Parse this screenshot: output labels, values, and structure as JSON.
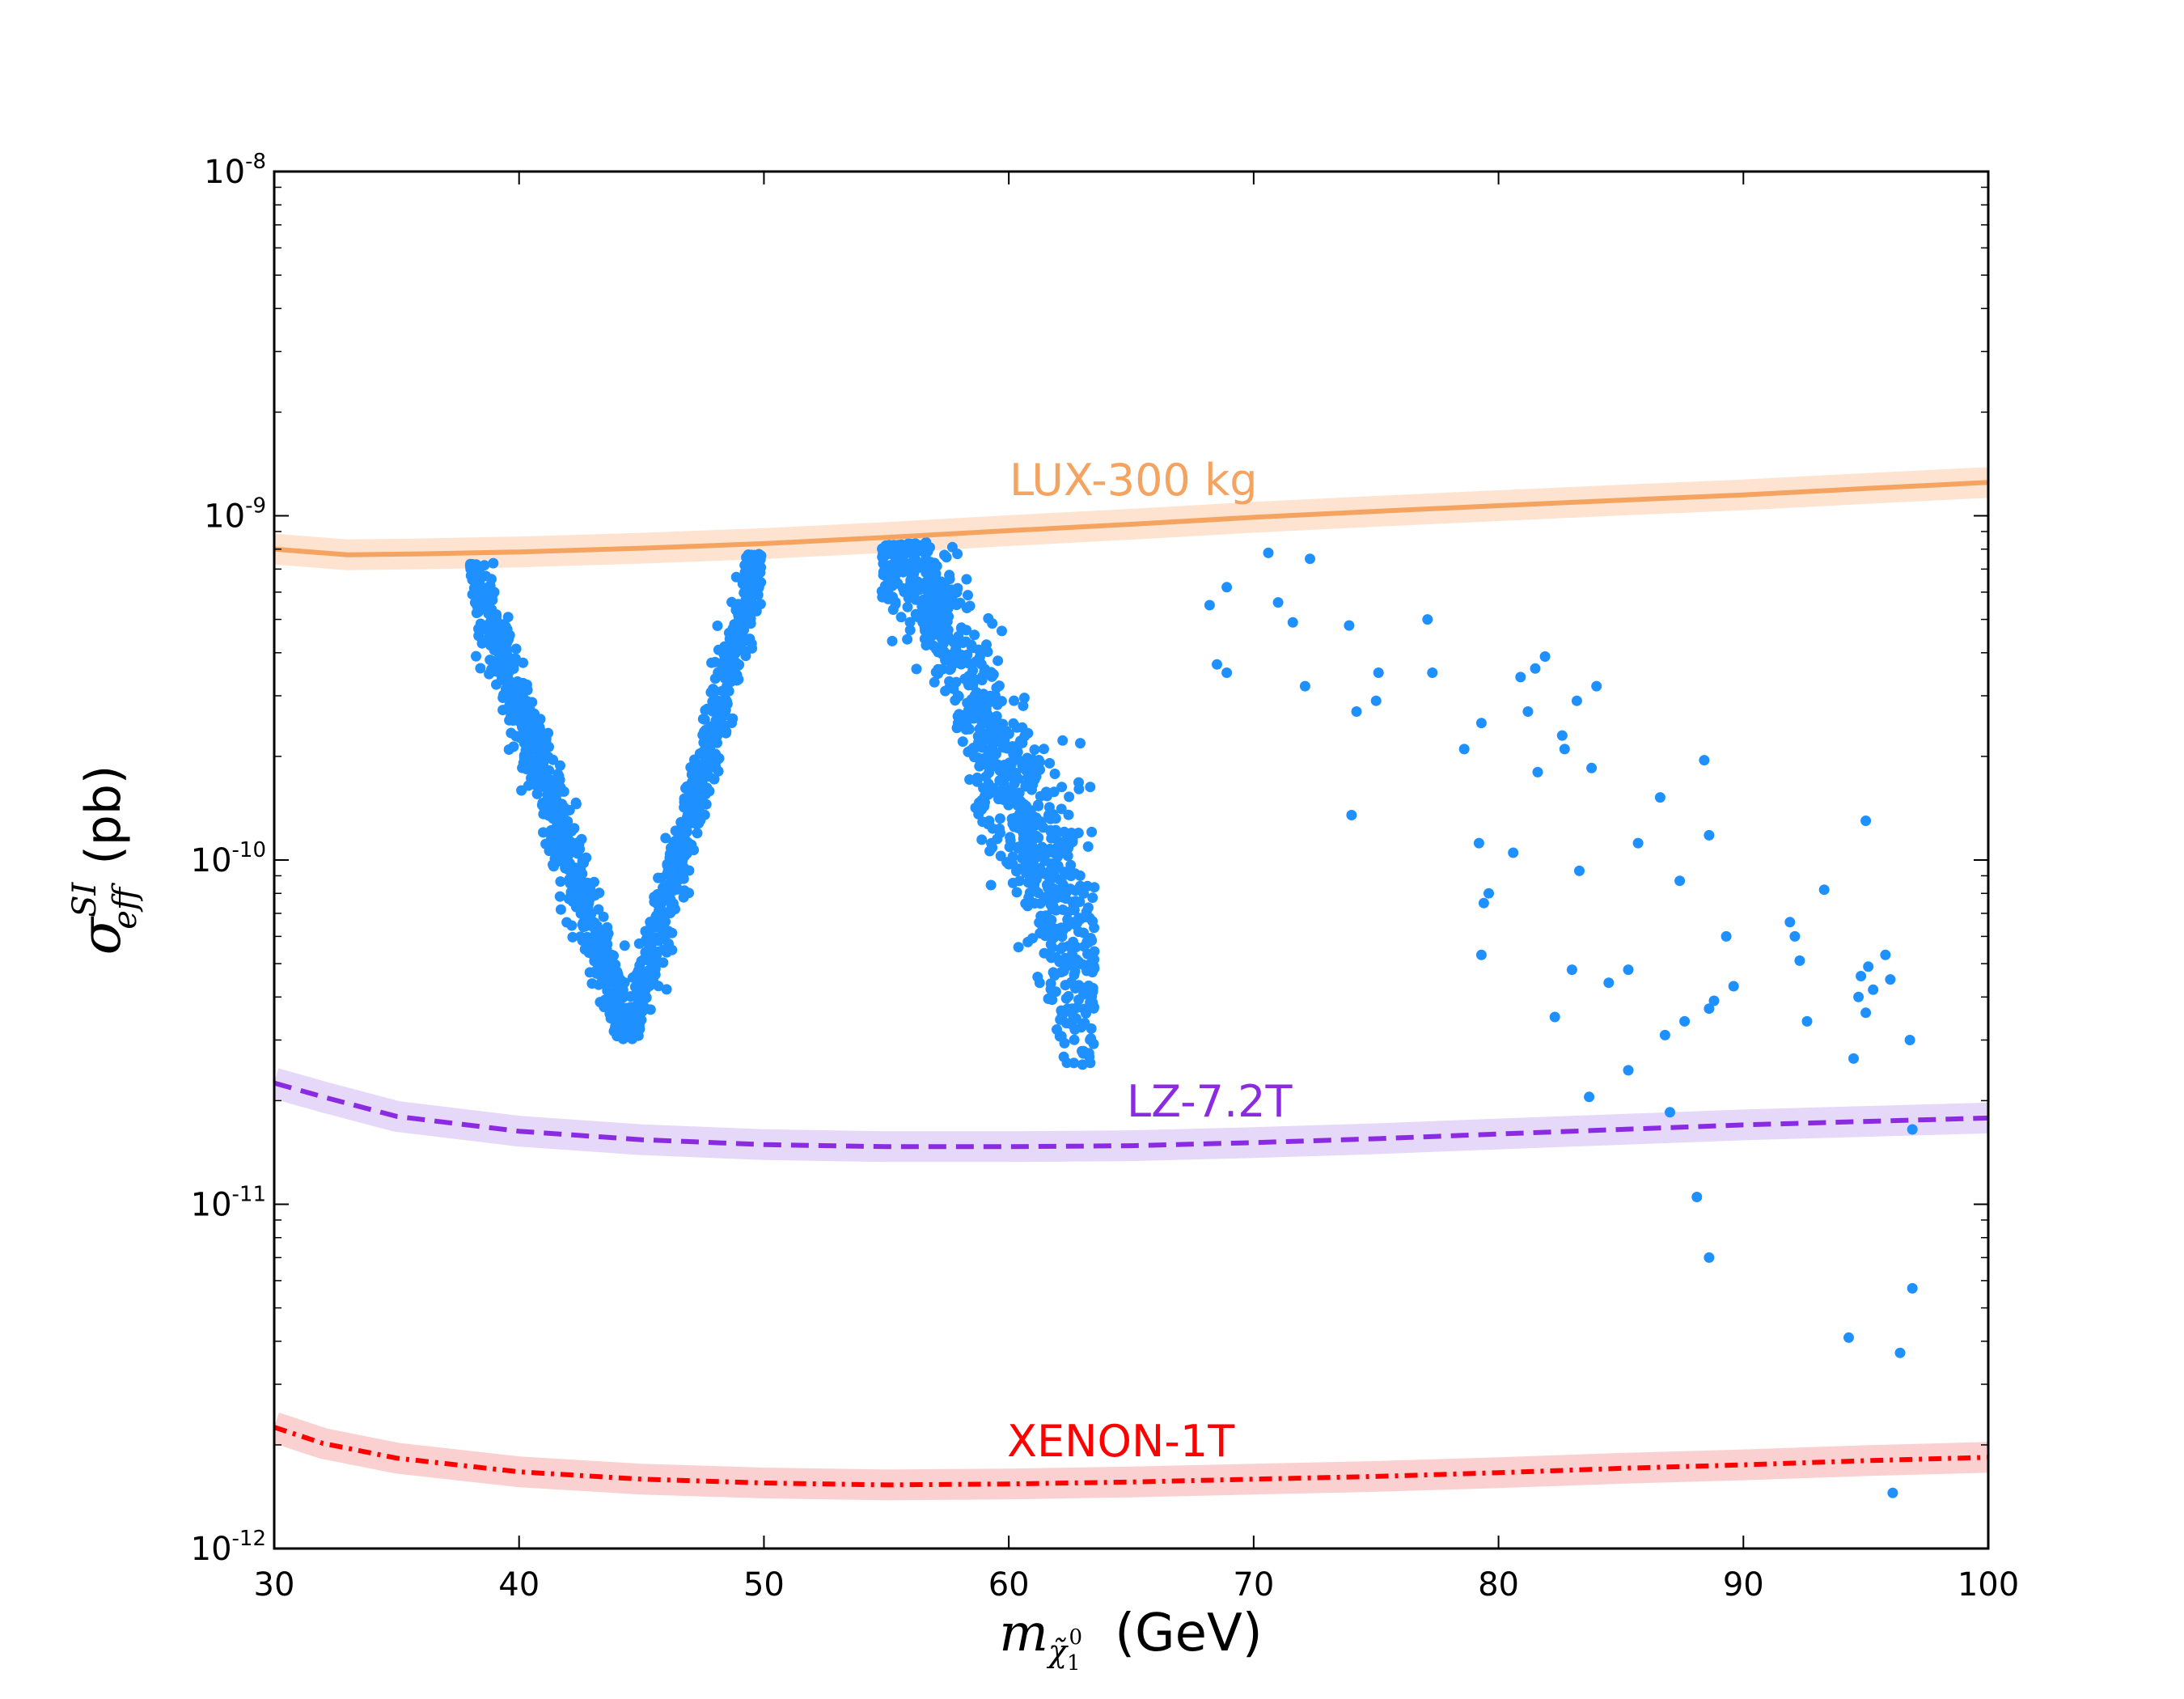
{
  "chart_data": {
    "type": "scatter",
    "xlabel": {
      "symbol": "m",
      "subscript": "χ̃",
      "sub_index": "1",
      "sub_super": "0",
      "unit": "(GeV)"
    },
    "ylabel": {
      "symbol": "σ",
      "superscript": "SI",
      "subscript": "eff",
      "unit": "(pb)"
    },
    "xlim": [
      30,
      100
    ],
    "ylim": [
      1e-12,
      1e-08
    ],
    "yscale": "log",
    "x_ticks": [
      {
        "value": 30,
        "label": "30"
      },
      {
        "value": 40,
        "label": "40"
      },
      {
        "value": 50,
        "label": "50"
      },
      {
        "value": 60,
        "label": "60"
      },
      {
        "value": 70,
        "label": "70"
      },
      {
        "value": 80,
        "label": "80"
      },
      {
        "value": 90,
        "label": "90"
      },
      {
        "value": 100,
        "label": "100"
      }
    ],
    "y_ticks": [
      {
        "exp": -12,
        "base": "10",
        "sup": "-12"
      },
      {
        "exp": -11,
        "base": "10",
        "sup": "-11"
      },
      {
        "exp": -10,
        "base": "10",
        "sup": "-10"
      },
      {
        "exp": -9,
        "base": "10",
        "sup": "-9"
      },
      {
        "exp": -8,
        "base": "10",
        "sup": "-8"
      }
    ],
    "colors": {
      "points": "#1e90ff",
      "lux": "#f4a460",
      "lux_band": "#fde3d0",
      "lz": "#8a2be2",
      "lz_band": "#e6d8f8",
      "xenon": "#ff0000",
      "xenon_band": "#fbd0d0"
    },
    "curves": [
      {
        "name": "LUX-300 kg",
        "label": "LUX-300 kg",
        "style": "solid",
        "color_key": "lux",
        "band_key": "lux_band",
        "label_at": [
          40.0,
          1.05e-09
        ],
        "points": [
          [
            30,
            8e-10
          ],
          [
            33,
            7.7e-10
          ],
          [
            36,
            7.75e-10
          ],
          [
            40,
            7.85e-10
          ],
          [
            45,
            8.05e-10
          ],
          [
            50,
            8.3e-10
          ],
          [
            55,
            8.65e-10
          ],
          [
            60,
            9.05e-10
          ],
          [
            65,
            9.45e-10
          ],
          [
            70,
            9.9e-10
          ],
          [
            75,
            1.03e-09
          ],
          [
            80,
            1.07e-09
          ],
          [
            85,
            1.11e-09
          ],
          [
            90,
            1.15e-09
          ],
          [
            95,
            1.2e-09
          ],
          [
            100,
            1.25e-09
          ]
        ]
      },
      {
        "name": "LZ-7.2T",
        "label": "LZ-7.2T",
        "style": "dashed",
        "color_key": "lz",
        "band_key": "lz_band",
        "label_at": [
          65.0,
          1.75e-11
        ],
        "points": [
          [
            30,
            2.25e-11
          ],
          [
            32,
            2.05e-11
          ],
          [
            35,
            1.8e-11
          ],
          [
            40,
            1.63e-11
          ],
          [
            45,
            1.54e-11
          ],
          [
            50,
            1.49e-11
          ],
          [
            55,
            1.47e-11
          ],
          [
            60,
            1.47e-11
          ],
          [
            65,
            1.48e-11
          ],
          [
            70,
            1.51e-11
          ],
          [
            75,
            1.55e-11
          ],
          [
            80,
            1.6e-11
          ],
          [
            85,
            1.65e-11
          ],
          [
            90,
            1.7e-11
          ],
          [
            95,
            1.74e-11
          ],
          [
            100,
            1.78e-11
          ]
        ]
      },
      {
        "name": "XENON-1T",
        "label": "XENON-1T",
        "style": "dashdot",
        "color_key": "xenon",
        "band_key": "xenon_band",
        "label_at": [
          60.0,
          1.75e-12
        ],
        "points": [
          [
            30,
            2.25e-12
          ],
          [
            32,
            2.02e-12
          ],
          [
            35,
            1.83e-12
          ],
          [
            40,
            1.67e-12
          ],
          [
            45,
            1.59e-12
          ],
          [
            50,
            1.55e-12
          ],
          [
            55,
            1.53e-12
          ],
          [
            60,
            1.54e-12
          ],
          [
            65,
            1.56e-12
          ],
          [
            70,
            1.59e-12
          ],
          [
            75,
            1.62e-12
          ],
          [
            80,
            1.66e-12
          ],
          [
            85,
            1.71e-12
          ],
          [
            90,
            1.75e-12
          ],
          [
            95,
            1.8e-12
          ],
          [
            100,
            1.84e-12
          ]
        ]
      }
    ],
    "point_regions": [
      {
        "name": "left-v-funnel",
        "xmin": 38.0,
        "xmax": 49.9,
        "xmid": 44.5,
        "ymin_exp": -10.52,
        "ymax_exp": -9.1,
        "count": 1300,
        "jitter_exp": 0.055
      },
      {
        "name": "right-band",
        "xmin": 54.8,
        "xmax": 63.5,
        "x0": 56.0,
        "x1": 63.2,
        "yhigh_exp": -9.06,
        "ylow_exp": -10.5,
        "count": 1000,
        "width_exp": 0.12
      }
    ],
    "scatter_points": [
      [
        68.2,
        5.5e-10
      ],
      [
        68.5,
        3.7e-10
      ],
      [
        68.9,
        6.2e-10
      ],
      [
        68.9,
        3.5e-10
      ],
      [
        70.6,
        7.8e-10
      ],
      [
        71.0,
        5.6e-10
      ],
      [
        71.6,
        4.9e-10
      ],
      [
        72.1,
        3.2e-10
      ],
      [
        72.3,
        7.5e-10
      ],
      [
        73.9,
        4.8e-10
      ],
      [
        74.0,
        1.35e-10
      ],
      [
        74.2,
        2.7e-10
      ],
      [
        75.0,
        2.9e-10
      ],
      [
        75.1,
        3.5e-10
      ],
      [
        77.1,
        5e-10
      ],
      [
        77.3,
        3.5e-10
      ],
      [
        78.6,
        2.1e-10
      ],
      [
        79.2,
        1.12e-10
      ],
      [
        79.3,
        2.5e-10
      ],
      [
        79.3,
        5.3e-11
      ],
      [
        79.4,
        7.5e-11
      ],
      [
        79.6,
        8e-11
      ],
      [
        80.6,
        1.05e-10
      ],
      [
        80.9,
        3.4e-10
      ],
      [
        81.2,
        2.7e-10
      ],
      [
        81.5,
        3.6e-10
      ],
      [
        81.6,
        1.8e-10
      ],
      [
        81.9,
        3.9e-10
      ],
      [
        82.3,
        3.5e-11
      ],
      [
        82.6,
        2.3e-10
      ],
      [
        82.7,
        2.1e-10
      ],
      [
        83.0,
        4.8e-11
      ],
      [
        83.2,
        2.9e-10
      ],
      [
        83.3,
        9.3e-11
      ],
      [
        83.7,
        2.05e-11
      ],
      [
        83.8,
        1.85e-10
      ],
      [
        84.0,
        3.2e-10
      ],
      [
        84.5,
        4.4e-11
      ],
      [
        85.3,
        2.45e-11
      ],
      [
        85.3,
        4.8e-11
      ],
      [
        85.7,
        1.12e-10
      ],
      [
        86.6,
        1.52e-10
      ],
      [
        86.8,
        3.1e-11
      ],
      [
        87.0,
        1.85e-11
      ],
      [
        87.4,
        8.7e-11
      ],
      [
        87.6,
        3.4e-11
      ],
      [
        88.1,
        1.05e-11
      ],
      [
        88.4,
        1.95e-10
      ],
      [
        88.6,
        7e-12
      ],
      [
        88.6,
        1.18e-10
      ],
      [
        88.6,
        3.7e-11
      ],
      [
        88.8,
        3.9e-11
      ],
      [
        89.3,
        6e-11
      ],
      [
        89.6,
        4.3e-11
      ],
      [
        91.9,
        6.6e-11
      ],
      [
        92.1,
        6e-11
      ],
      [
        92.3,
        5.1e-11
      ],
      [
        92.6,
        3.4e-11
      ],
      [
        93.3,
        8.2e-11
      ],
      [
        94.3,
        4.1e-12
      ],
      [
        94.5,
        2.65e-11
      ],
      [
        94.7,
        4e-11
      ],
      [
        94.8,
        4.6e-11
      ],
      [
        95.0,
        1.3e-10
      ],
      [
        95.0,
        3.6e-11
      ],
      [
        95.1,
        4.9e-11
      ],
      [
        95.3,
        4.2e-11
      ],
      [
        95.8,
        5.3e-11
      ],
      [
        96.0,
        4.5e-11
      ],
      [
        96.4,
        3.7e-12
      ],
      [
        96.8,
        3e-11
      ],
      [
        96.9,
        1.65e-11
      ],
      [
        96.9,
        5.7e-12
      ],
      [
        96.1,
        1.45e-12
      ]
    ]
  }
}
